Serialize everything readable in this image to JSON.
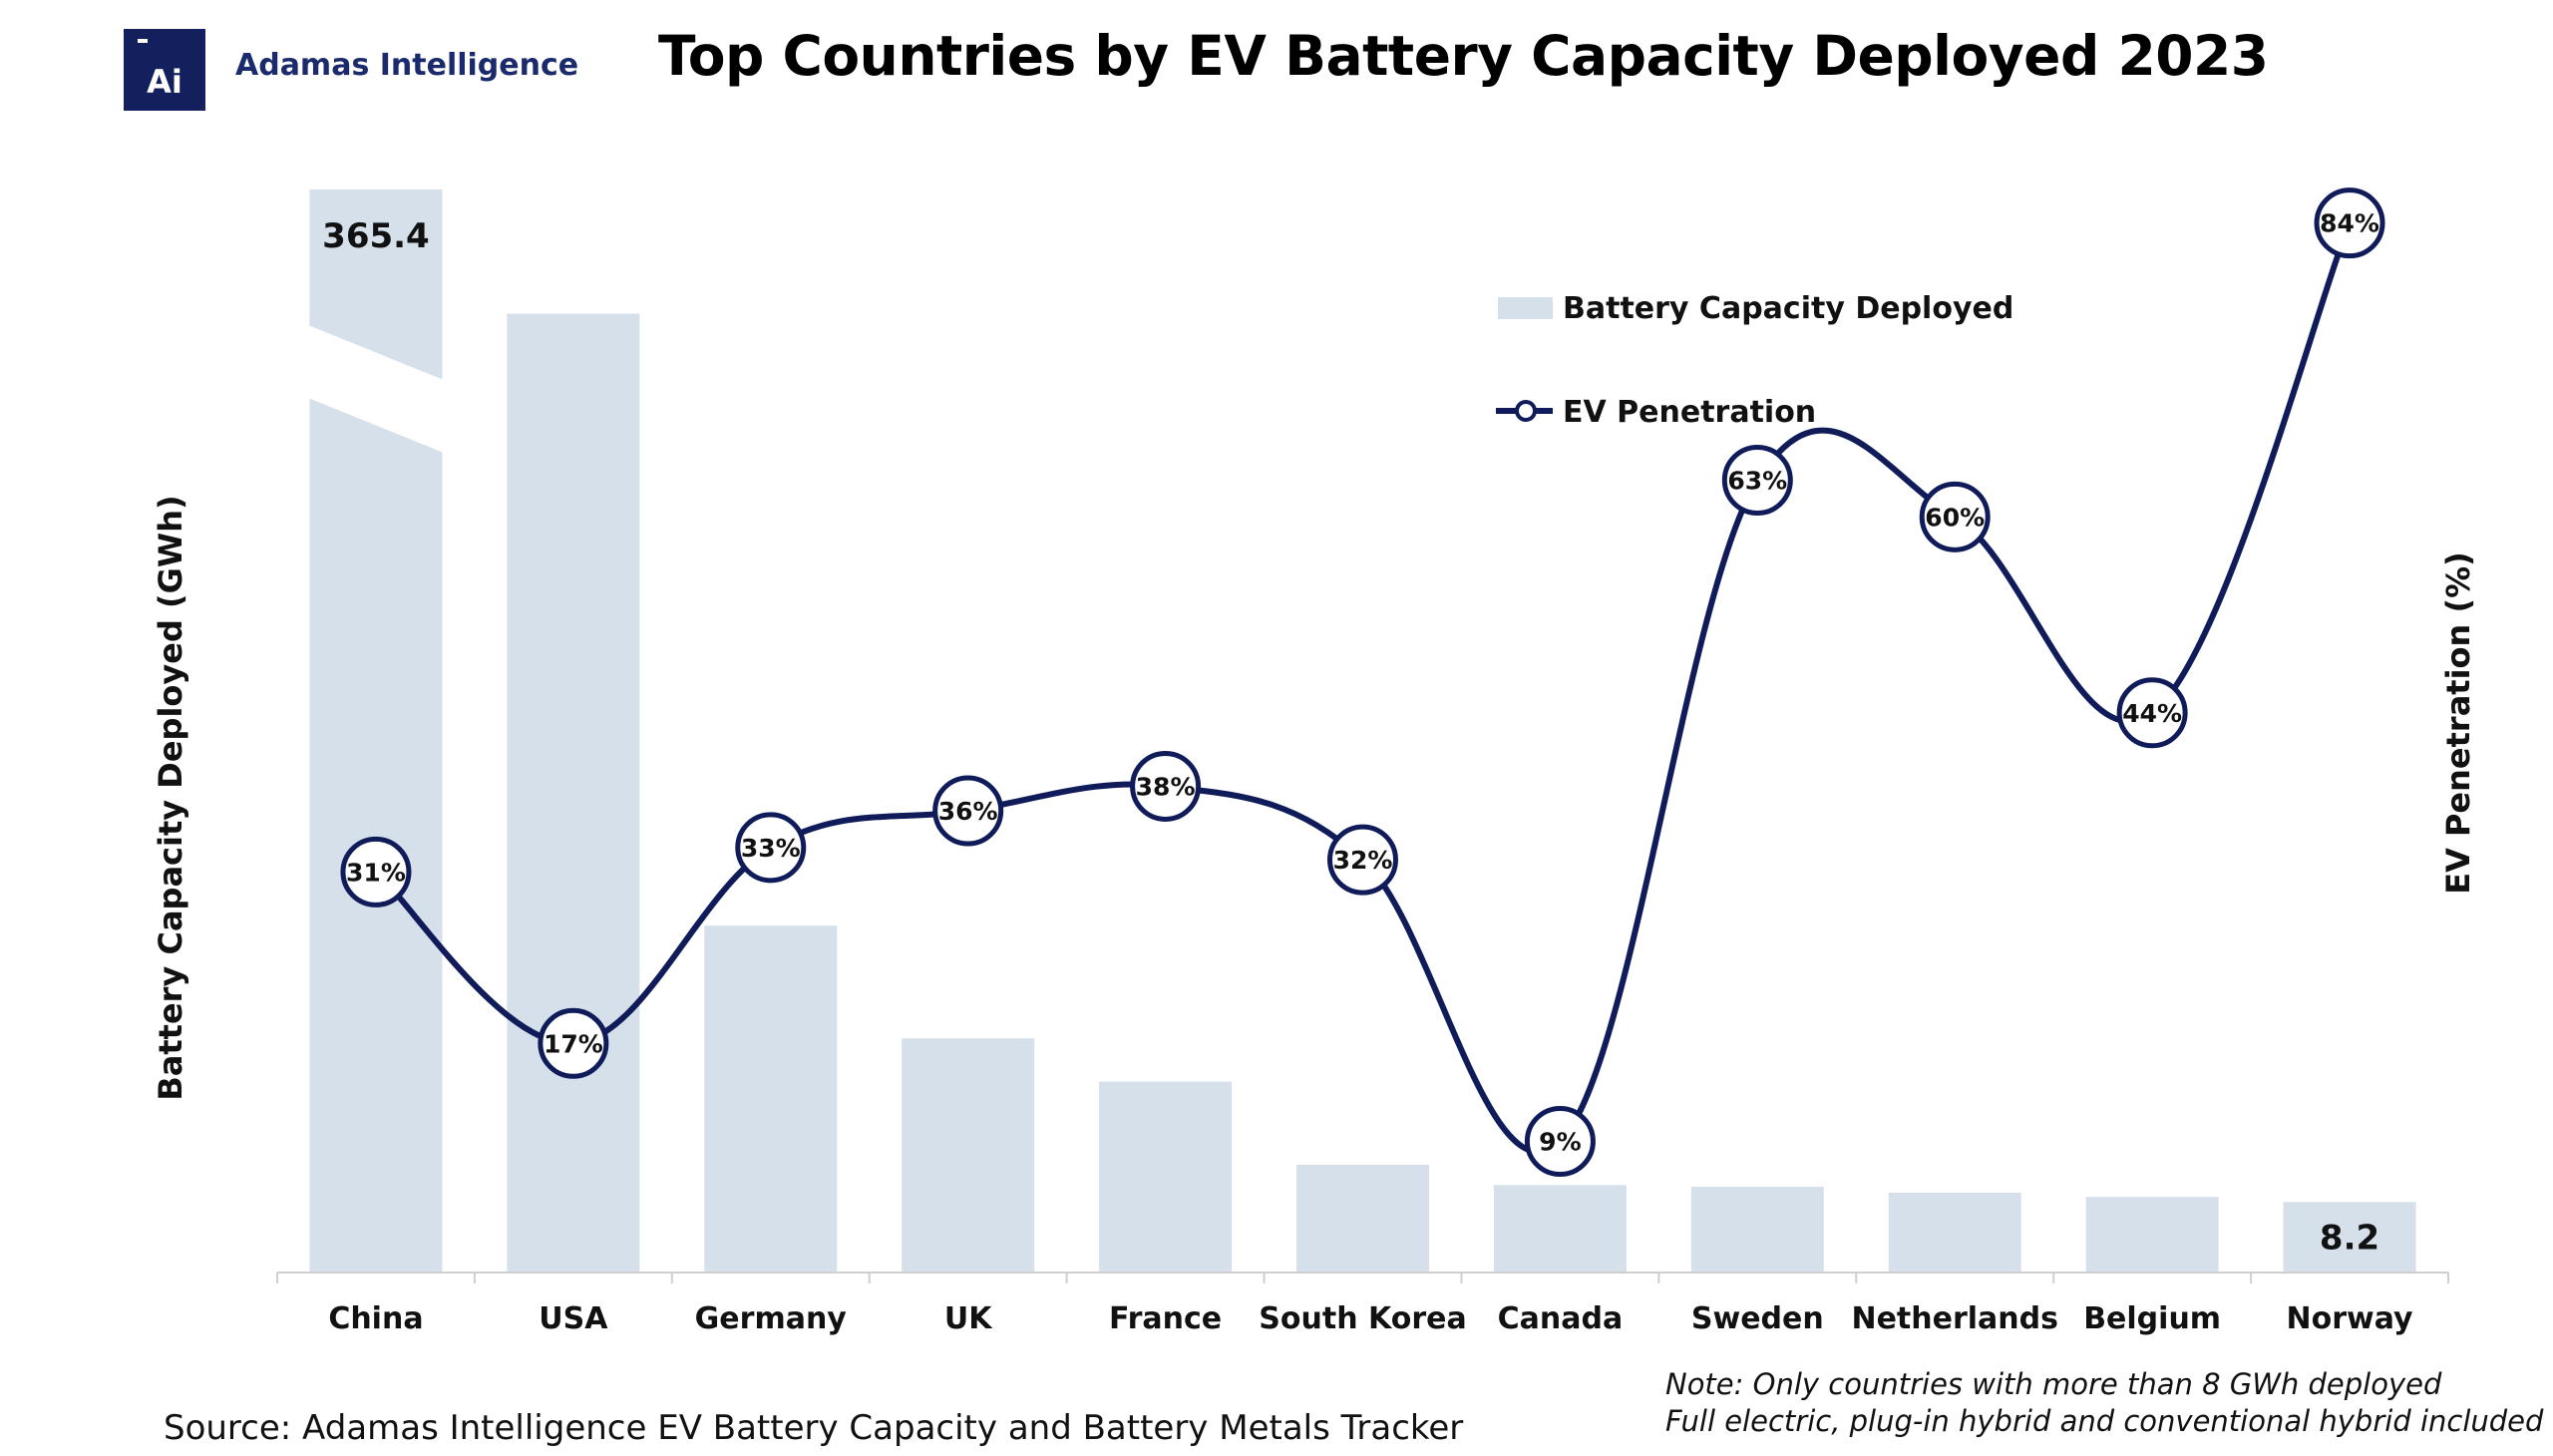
{
  "header": {
    "logo_text": "Ai",
    "brand": "Adamas Intelligence",
    "title": "Top Countries by EV Battery Capacity Deployed 2023"
  },
  "footer": {
    "source": "Source: Adamas Intelligence EV Battery Capacity and Battery Metals Tracker",
    "note_line1": "Note: Only countries with more than 8 GWh deployed",
    "note_line2": "Full electric, plug-in hybrid and conventional hybrid included"
  },
  "chart_data": {
    "type": "bar",
    "title": "Top Countries by EV Battery Capacity Deployed 2023",
    "categories": [
      "China",
      "USA",
      "Germany",
      "UK",
      "France",
      "South Korea",
      "Canada",
      "Sweden",
      "Netherlands",
      "Belgium",
      "Norway"
    ],
    "ylabel": "Battery Capacity Deployed (GWh)",
    "y2label": "EV Penetration (%)",
    "axis_break": true,
    "grid": false,
    "legend_position": "top-right",
    "series": [
      {
        "name": "Battery Capacity Deployed",
        "type": "bar",
        "axis": "left",
        "color": "#d6e0ea",
        "values": [
          365.4,
          113,
          40.8,
          27.5,
          22.4,
          12.6,
          10.2,
          10,
          9.3,
          8.8,
          8.2
        ],
        "data_labels": [
          "365.4",
          "",
          "",
          "",
          "",
          "",
          "",
          "",
          "",
          "",
          "8.2"
        ]
      },
      {
        "name": "EV Penetration",
        "type": "line",
        "axis": "right",
        "color": "#101c5a",
        "values": [
          31,
          17,
          33,
          36,
          38,
          32,
          9,
          63,
          60,
          44,
          84
        ],
        "data_labels": [
          "31%",
          "17%",
          "33%",
          "36%",
          "38%",
          "32%",
          "9%",
          "63%",
          "60%",
          "44%",
          "84%"
        ]
      }
    ]
  }
}
